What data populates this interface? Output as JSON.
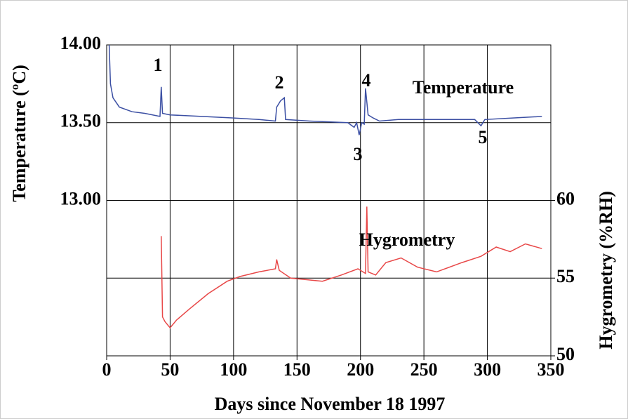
{
  "chart_data": {
    "type": "line",
    "xlabel": "Days since November 18 1997",
    "ylabel": "Temperature (ºC)",
    "y2label": "Hygrometry (%RH)",
    "annotations": [
      "1",
      "2",
      "3",
      "4",
      "5"
    ],
    "xlim": [
      0,
      350
    ],
    "xticks": [
      0,
      50,
      100,
      150,
      200,
      250,
      300,
      350
    ],
    "ylim": [
      12,
      14
    ],
    "yticks": [
      {
        "value": 13,
        "label": "13.00"
      },
      {
        "value": 13.5,
        "label": "13.50"
      },
      {
        "value": 14,
        "label": "14.00"
      }
    ],
    "y2lim": [
      50,
      70
    ],
    "y2ticks": [
      50,
      55,
      60
    ],
    "grid": true,
    "series": [
      {
        "name": "Temperature",
        "color": "#3b4fa3",
        "x": [
          2,
          3,
          5,
          10,
          20,
          30,
          42,
          43,
          44,
          50,
          75,
          100,
          120,
          133,
          134,
          137,
          140,
          141,
          160,
          190,
          195,
          197,
          199,
          201,
          203,
          204,
          206,
          210,
          215,
          230,
          260,
          290,
          295,
          298,
          320,
          343
        ],
        "values": [
          14.0,
          13.75,
          13.66,
          13.6,
          13.57,
          13.56,
          13.54,
          13.73,
          13.56,
          13.55,
          13.54,
          13.53,
          13.52,
          13.51,
          13.6,
          13.64,
          13.66,
          13.52,
          13.51,
          13.5,
          13.47,
          13.5,
          13.42,
          13.5,
          13.49,
          13.72,
          13.55,
          13.53,
          13.51,
          13.52,
          13.52,
          13.52,
          13.48,
          13.52,
          13.53,
          13.54
        ]
      },
      {
        "name": "Hygrometry",
        "color": "#e84848",
        "axis": "y2",
        "x": [
          43,
          44,
          46,
          50,
          55,
          65,
          80,
          95,
          105,
          120,
          133,
          134,
          136,
          145,
          170,
          185,
          198,
          204,
          205,
          206,
          212,
          220,
          232,
          245,
          260,
          280,
          295,
          307,
          318,
          330,
          343
        ],
        "values": [
          57.7,
          52.5,
          52.2,
          51.8,
          52.3,
          53.0,
          54.0,
          54.8,
          55.1,
          55.4,
          55.6,
          56.2,
          55.5,
          55.0,
          54.8,
          55.2,
          55.6,
          55.3,
          59.6,
          55.4,
          55.2,
          56.0,
          56.3,
          55.7,
          55.4,
          56.0,
          56.4,
          57.0,
          56.7,
          57.2,
          56.9
        ]
      }
    ]
  }
}
